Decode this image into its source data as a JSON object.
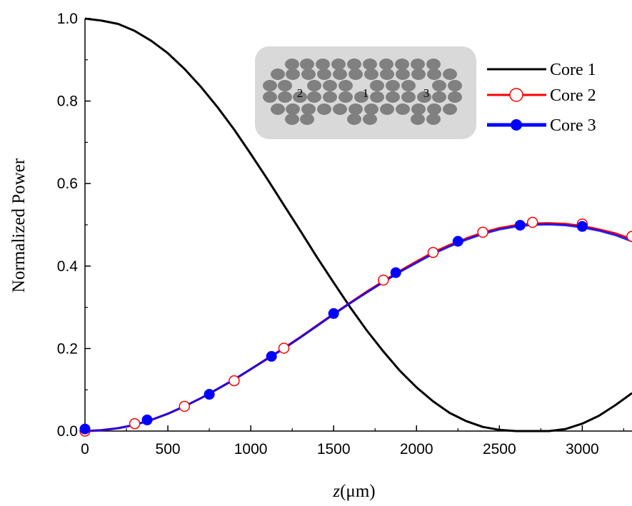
{
  "chart_data": {
    "type": "line",
    "title": "",
    "xlabel": {
      "italic": "z",
      "rest": "(μm)"
    },
    "ylabel": "Normalized Power",
    "xlim": [
      0,
      3300
    ],
    "ylim": [
      0,
      1.0
    ],
    "xticks": [
      0,
      500,
      1000,
      1500,
      2000,
      2500,
      3000
    ],
    "xtick_labels": [
      "0",
      "500",
      "1000",
      "1500",
      "2000",
      "2500",
      "3000"
    ],
    "yticks": [
      0.0,
      0.2,
      0.4,
      0.6,
      0.8,
      1.0
    ],
    "ytick_labels": [
      "0.0",
      "0.2",
      "0.4",
      "0.6",
      "0.8",
      "1.0"
    ],
    "grid": false,
    "legend_position": "top-right",
    "series": [
      {
        "name": "Core 1",
        "color": "#000000",
        "marker": "none",
        "x": [
          0,
          100,
          200,
          300,
          400,
          500,
          600,
          700,
          800,
          900,
          1000,
          1100,
          1200,
          1300,
          1400,
          1500,
          1600,
          1700,
          1800,
          1900,
          2000,
          2100,
          2200,
          2300,
          2400,
          2500,
          2600,
          2700,
          2800,
          2900,
          3000,
          3100,
          3200,
          3300
        ],
        "y": [
          1.0,
          0.995,
          0.987,
          0.97,
          0.946,
          0.916,
          0.878,
          0.834,
          0.785,
          0.731,
          0.672,
          0.611,
          0.548,
          0.485,
          0.421,
          0.36,
          0.3,
          0.244,
          0.193,
          0.146,
          0.106,
          0.072,
          0.044,
          0.024,
          0.01,
          0.003,
          0.0,
          0.0,
          0.0,
          0.005,
          0.018,
          0.037,
          0.063,
          0.092
        ]
      },
      {
        "name": "Core 2",
        "color": "#ff0000",
        "marker": "open-circle",
        "x": [
          0,
          100,
          200,
          300,
          400,
          500,
          600,
          700,
          800,
          900,
          1000,
          1100,
          1200,
          1300,
          1400,
          1500,
          1600,
          1700,
          1800,
          1900,
          2000,
          2100,
          2200,
          2300,
          2400,
          2500,
          2600,
          2700,
          2800,
          2900,
          3000,
          3100,
          3200,
          3300
        ],
        "y": [
          0.0,
          0.002,
          0.007,
          0.015,
          0.027,
          0.042,
          0.06,
          0.08,
          0.102,
          0.125,
          0.15,
          0.176,
          0.201,
          0.228,
          0.256,
          0.284,
          0.311,
          0.338,
          0.363,
          0.388,
          0.411,
          0.433,
          0.451,
          0.467,
          0.481,
          0.492,
          0.499,
          0.503,
          0.504,
          0.502,
          0.497,
          0.489,
          0.479,
          0.465
        ],
        "marker_x": [
          0,
          300,
          600,
          900,
          1200,
          1800,
          2100,
          2400,
          2700,
          3000,
          3300
        ],
        "marker_y": [
          0.0,
          0.018,
          0.06,
          0.122,
          0.201,
          0.366,
          0.433,
          0.482,
          0.506,
          0.502,
          0.472
        ]
      },
      {
        "name": "Core 3",
        "color": "#0000ff",
        "marker": "filled-circle",
        "x": [
          0,
          100,
          200,
          300,
          400,
          500,
          600,
          700,
          800,
          900,
          1000,
          1100,
          1200,
          1300,
          1400,
          1500,
          1600,
          1700,
          1800,
          1900,
          2000,
          2100,
          2200,
          2300,
          2400,
          2500,
          2600,
          2700,
          2800,
          2900,
          3000,
          3100,
          3200,
          3300
        ],
        "y": [
          0.0,
          0.002,
          0.007,
          0.015,
          0.027,
          0.042,
          0.06,
          0.08,
          0.102,
          0.125,
          0.15,
          0.175,
          0.2,
          0.227,
          0.255,
          0.283,
          0.31,
          0.336,
          0.361,
          0.386,
          0.408,
          0.43,
          0.448,
          0.464,
          0.478,
          0.489,
          0.496,
          0.5,
          0.501,
          0.499,
          0.494,
          0.486,
          0.475,
          0.46
        ],
        "marker_x": [
          0,
          375,
          750,
          1125,
          1500,
          1875,
          2250,
          2625,
          3000
        ],
        "marker_y": [
          0.005,
          0.027,
          0.089,
          0.181,
          0.285,
          0.384,
          0.46,
          0.499,
          0.496
        ]
      }
    ],
    "inset": {
      "description_labels": [
        "2",
        "1",
        "3"
      ],
      "background": "#d9d9d9",
      "core_color": "#808080"
    }
  }
}
